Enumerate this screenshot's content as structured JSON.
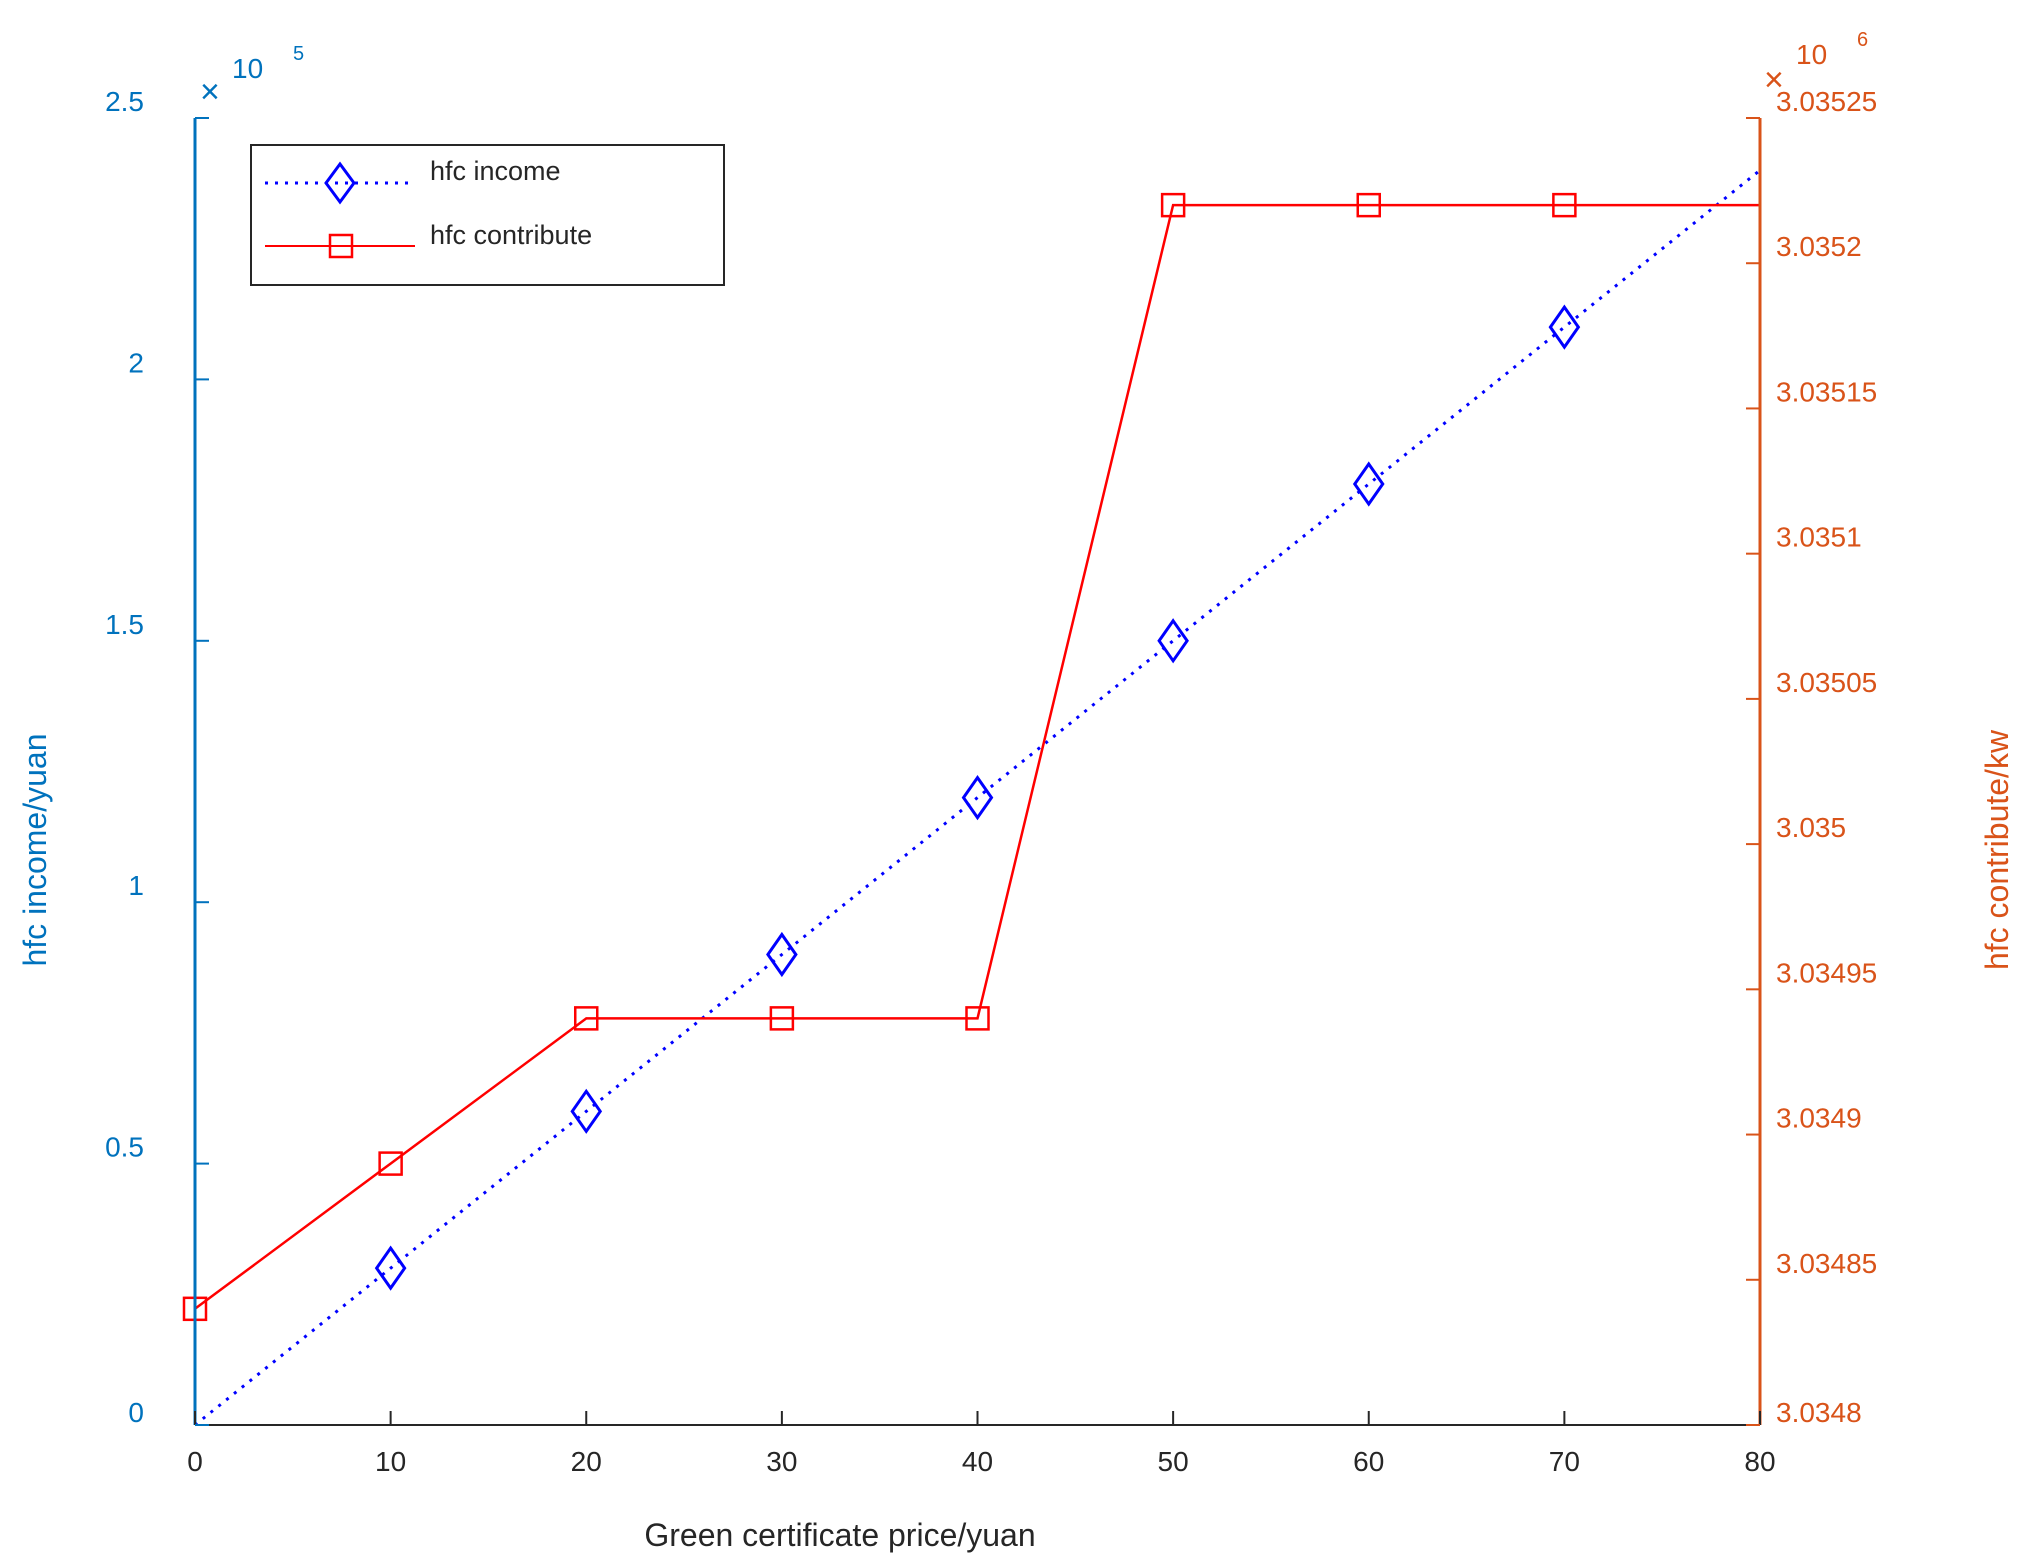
{
  "chart_data": {
    "type": "line",
    "xlabel": "Green certificate price/yuan",
    "xlim": [
      0,
      80
    ],
    "xticks": [
      "0",
      "10",
      "20",
      "30",
      "40",
      "50",
      "60",
      "70",
      "80"
    ],
    "y_left": {
      "label": "hfc income/yuan",
      "lim": [
        0,
        2.5
      ],
      "ticks": [
        "0",
        "0.5",
        "1",
        "1.5",
        "2",
        "2.5"
      ],
      "exponent_base": "10",
      "exponent_power": "5",
      "color": "#0072BD"
    },
    "y_right": {
      "label": "hfc contribute/kw",
      "lim": [
        3.0348,
        3.03525
      ],
      "ticks": [
        "3.0348",
        "3.03485",
        "3.0349",
        "3.03495",
        "3.035",
        "3.03505",
        "3.0351",
        "3.03515",
        "3.0352",
        "3.03525"
      ],
      "exponent_base": "10",
      "exponent_power": "6",
      "color": "#D95319"
    },
    "grid": false,
    "legend_position": "top-left",
    "series": [
      {
        "name": "hfc income",
        "axis": "left",
        "color": "#0000FF",
        "line_style": "dotted",
        "marker": "diamond",
        "x": [
          0,
          10,
          20,
          30,
          40,
          50,
          60,
          70,
          80
        ],
        "y": [
          0,
          0.3,
          0.6,
          0.9,
          1.2,
          1.5,
          1.8,
          2.1,
          2.4
        ],
        "marker_indices": [
          1,
          2,
          3,
          4,
          5,
          6,
          7
        ]
      },
      {
        "name": "hfc contribute",
        "axis": "right",
        "color": "#FF0000",
        "line_style": "solid",
        "marker": "square",
        "x": [
          0,
          10,
          20,
          30,
          40,
          50,
          60,
          70,
          80
        ],
        "y": [
          3.03484,
          3.03489,
          3.03494,
          3.03494,
          3.03494,
          3.03522,
          3.03522,
          3.03522,
          3.03522
        ],
        "marker_indices": [
          0,
          1,
          2,
          3,
          4,
          5,
          6,
          7
        ]
      }
    ]
  }
}
